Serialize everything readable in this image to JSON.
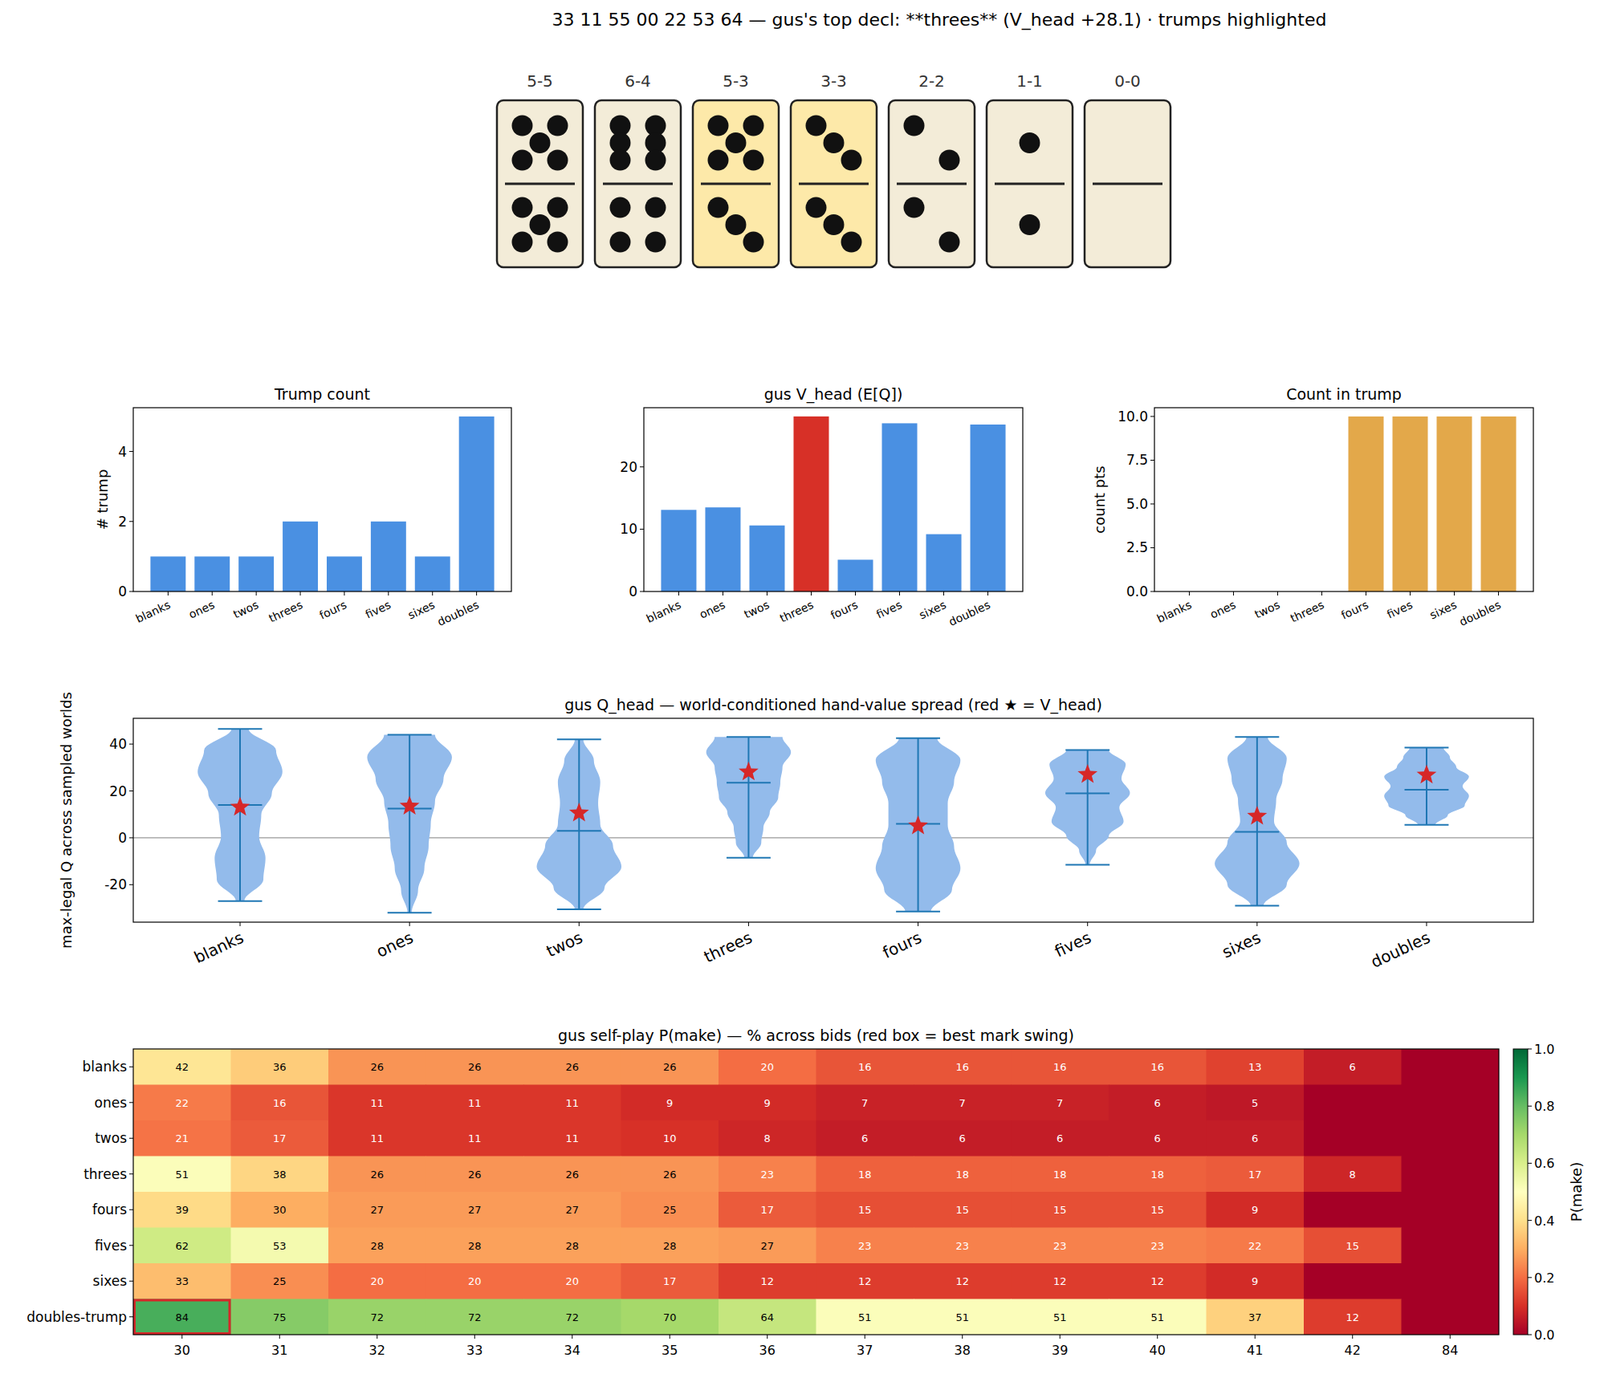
{
  "title": "33 11 55 00 22 53 64  —  gus's top decl: **threes**  (V_head +28.1)   · trumps highlighted",
  "tiles": [
    {
      "label": "5-5",
      "top": 5,
      "bottom": 5,
      "trump": false
    },
    {
      "label": "6-4",
      "top": 6,
      "bottom": 4,
      "trump": false
    },
    {
      "label": "5-3",
      "top": 5,
      "bottom": 3,
      "trump": true
    },
    {
      "label": "3-3",
      "top": 3,
      "bottom": 3,
      "trump": true
    },
    {
      "label": "2-2",
      "top": 2,
      "bottom": 2,
      "trump": false
    },
    {
      "label": "1-1",
      "top": 1,
      "bottom": 1,
      "trump": false
    },
    {
      "label": "0-0",
      "top": 0,
      "bottom": 0,
      "trump": false
    }
  ],
  "chart_data": [
    {
      "type": "bar",
      "title": "Trump count",
      "ylabel": "# trump",
      "categories": [
        "blanks",
        "ones",
        "twos",
        "threes",
        "fours",
        "fives",
        "sixes",
        "doubles"
      ],
      "values": [
        1,
        1,
        1,
        2,
        1,
        2,
        1,
        5
      ],
      "color": "#4a90e2",
      "ylim": [
        0,
        5.25
      ],
      "yticks": [
        0,
        2,
        4
      ]
    },
    {
      "type": "bar",
      "title": "gus V_head (E[Q])",
      "categories": [
        "blanks",
        "ones",
        "twos",
        "threes",
        "fours",
        "fives",
        "sixes",
        "doubles"
      ],
      "values": [
        13.1,
        13.5,
        10.6,
        28.1,
        5.1,
        27.0,
        9.2,
        26.8
      ],
      "colors": [
        "#4a90e2",
        "#4a90e2",
        "#4a90e2",
        "#d73027",
        "#4a90e2",
        "#4a90e2",
        "#4a90e2",
        "#4a90e2"
      ],
      "ylim": [
        0,
        29.5
      ],
      "yticks": [
        0,
        10,
        20
      ]
    },
    {
      "type": "bar",
      "title": "Count in trump",
      "ylabel": "count pts",
      "categories": [
        "blanks",
        "ones",
        "twos",
        "threes",
        "fours",
        "fives",
        "sixes",
        "doubles"
      ],
      "values": [
        0,
        0,
        0,
        0,
        10,
        10,
        10,
        10
      ],
      "color": "#e3a84a",
      "ylim": [
        0,
        10.5
      ],
      "yticks": [
        {
          "value": 0,
          "label": "0.0"
        },
        {
          "value": 2.5,
          "label": "2.5"
        },
        {
          "value": 5,
          "label": "5.0"
        },
        {
          "value": 7.5,
          "label": "7.5"
        },
        {
          "value": 10,
          "label": "10.0"
        }
      ]
    },
    {
      "type": "violin",
      "title": "gus Q_head — world-conditioned hand-value spread (red ★ = V_head)",
      "ylabel": "max-legal Q across sampled worlds",
      "categories": [
        "blanks",
        "ones",
        "twos",
        "threes",
        "fours",
        "fives",
        "sixes",
        "doubles"
      ],
      "min": [
        -27,
        -32,
        -30.5,
        -8.5,
        -31.5,
        -11.5,
        -29,
        5.5
      ],
      "max": [
        46.5,
        44,
        42,
        43,
        42.5,
        37.5,
        43,
        38.5
      ],
      "median": [
        14,
        12.5,
        3,
        23.5,
        6,
        19,
        2.5,
        20.5
      ],
      "v_head": [
        13.1,
        13.5,
        10.6,
        28.1,
        5.1,
        27.0,
        9.2,
        26.8
      ],
      "density": [
        [
          0.1,
          0.55,
          0.6,
          0.45,
          0.5,
          0.75,
          1.0,
          0.85,
          0.2
        ],
        [
          0.05,
          0.2,
          0.35,
          0.45,
          0.5,
          0.6,
          0.8,
          1.0,
          0.6
        ],
        [
          0.1,
          0.6,
          1.0,
          0.8,
          0.5,
          0.45,
          0.5,
          0.35,
          0.1
        ],
        [
          0.1,
          0.3,
          0.35,
          0.5,
          0.7,
          0.75,
          0.8,
          1.0,
          0.8
        ],
        [
          0.3,
          0.8,
          1.0,
          0.85,
          0.7,
          0.7,
          0.85,
          1.0,
          0.45
        ],
        [
          0.05,
          0.2,
          0.5,
          0.85,
          0.75,
          1.0,
          0.8,
          0.9,
          0.5
        ],
        [
          0.15,
          0.7,
          1.0,
          0.7,
          0.4,
          0.45,
          0.6,
          0.7,
          0.25
        ],
        [
          0.2,
          0.5,
          0.9,
          1.0,
          0.85,
          1.0,
          0.7,
          0.55,
          0.4
        ]
      ],
      "reference_line": 0,
      "color": "#93bbeb",
      "ylim": [
        -36,
        51
      ],
      "yticks": [
        -20,
        0,
        20,
        40
      ]
    },
    {
      "type": "heatmap",
      "title": "gus self-play P(make) — % across bids (red box = best mark swing)",
      "rows": [
        "blanks",
        "ones",
        "twos",
        "threes",
        "fours",
        "fives",
        "sixes",
        "doubles-trump"
      ],
      "categories": [
        "30",
        "31",
        "32",
        "33",
        "34",
        "35",
        "36",
        "37",
        "38",
        "39",
        "40",
        "41",
        "42",
        "84"
      ],
      "values": [
        [
          0.42,
          0.36,
          0.26,
          0.26,
          0.26,
          0.26,
          0.2,
          0.16,
          0.16,
          0.16,
          0.16,
          0.13,
          0.06,
          0
        ],
        [
          0.22,
          0.16,
          0.11,
          0.11,
          0.11,
          0.09,
          0.09,
          0.07,
          0.07,
          0.07,
          0.06,
          0.05,
          0,
          0
        ],
        [
          0.21,
          0.17,
          0.11,
          0.11,
          0.11,
          0.1,
          0.08,
          0.06,
          0.06,
          0.06,
          0.06,
          0.06,
          0,
          0
        ],
        [
          0.51,
          0.38,
          0.26,
          0.26,
          0.26,
          0.26,
          0.23,
          0.18,
          0.18,
          0.18,
          0.18,
          0.17,
          0.08,
          0
        ],
        [
          0.39,
          0.3,
          0.27,
          0.27,
          0.27,
          0.25,
          0.17,
          0.15,
          0.15,
          0.15,
          0.15,
          0.09,
          0,
          0
        ],
        [
          0.62,
          0.53,
          0.28,
          0.28,
          0.28,
          0.28,
          0.27,
          0.23,
          0.23,
          0.23,
          0.23,
          0.22,
          0.15,
          0
        ],
        [
          0.33,
          0.25,
          0.2,
          0.2,
          0.2,
          0.17,
          0.12,
          0.12,
          0.12,
          0.12,
          0.12,
          0.09,
          0,
          0
        ],
        [
          0.84,
          0.75,
          0.72,
          0.72,
          0.72,
          0.7,
          0.64,
          0.51,
          0.51,
          0.51,
          0.51,
          0.37,
          0.12,
          0
        ]
      ],
      "value_labels": [
        [
          "42",
          "36",
          "26",
          "26",
          "26",
          "26",
          "20",
          "16",
          "16",
          "16",
          "16",
          "13",
          "6",
          null
        ],
        [
          "22",
          "16",
          "11",
          "11",
          "11",
          "9",
          "9",
          "7",
          "7",
          "7",
          "6",
          "5",
          null,
          null
        ],
        [
          "21",
          "17",
          "11",
          "11",
          "11",
          "10",
          "8",
          "6",
          "6",
          "6",
          "6",
          "6",
          null,
          null
        ],
        [
          "51",
          "38",
          "26",
          "26",
          "26",
          "26",
          "23",
          "18",
          "18",
          "18",
          "18",
          "17",
          "8",
          null
        ],
        [
          "39",
          "30",
          "27",
          "27",
          "27",
          "25",
          "17",
          "15",
          "15",
          "15",
          "15",
          "9",
          null,
          null
        ],
        [
          "62",
          "53",
          "28",
          "28",
          "28",
          "28",
          "27",
          "23",
          "23",
          "23",
          "23",
          "22",
          "15",
          null
        ],
        [
          "33",
          "25",
          "20",
          "20",
          "20",
          "17",
          "12",
          "12",
          "12",
          "12",
          "12",
          "9",
          null,
          null
        ],
        [
          "84",
          "75",
          "72",
          "72",
          "72",
          "70",
          "64",
          "51",
          "51",
          "51",
          "51",
          "37",
          "12",
          null
        ]
      ],
      "data_labels": true,
      "highlight": {
        "row": "doubles-trump",
        "column": "30"
      },
      "colorbar": {
        "label": "P(make)",
        "range": [
          0,
          1
        ],
        "ticks": [
          {
            "value": 0,
            "label": "0.0"
          },
          {
            "value": 0.2,
            "label": "0.2"
          },
          {
            "value": 0.4,
            "label": "0.4"
          },
          {
            "value": 0.6,
            "label": "0.6"
          },
          {
            "value": 0.8,
            "label": "0.8"
          },
          {
            "value": 1,
            "label": "1.0"
          }
        ]
      }
    }
  ]
}
